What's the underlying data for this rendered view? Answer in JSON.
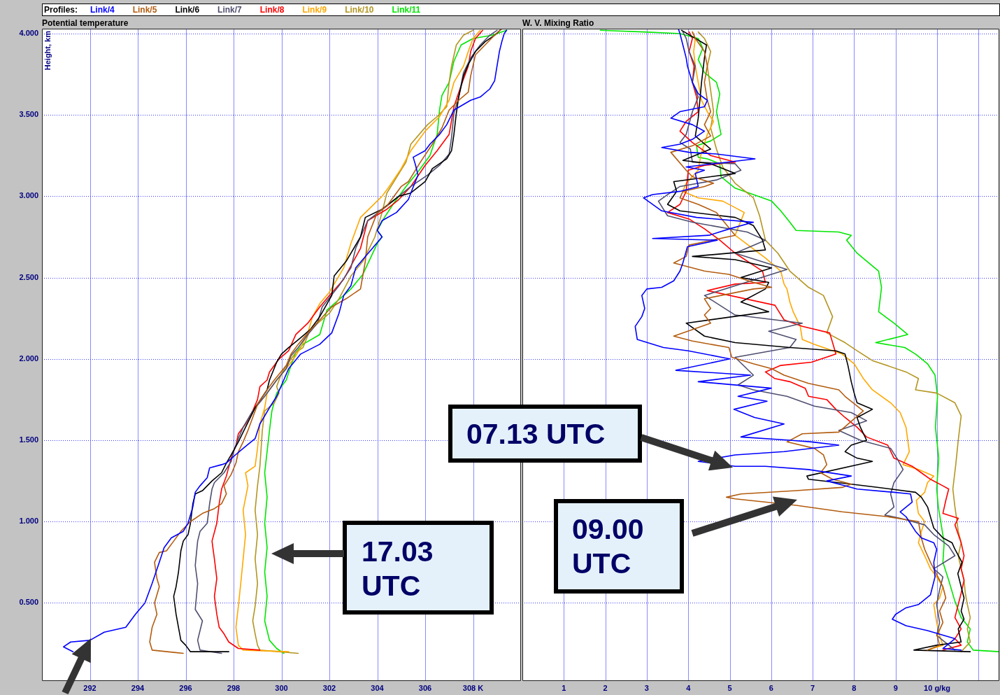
{
  "chart_data": [
    {
      "type": "line",
      "title": "Potential temperature",
      "ylabel": "Height, km",
      "legend": "top",
      "legend_title": "Profiles:",
      "grid": true,
      "xlim": [
        290,
        310
      ],
      "ylim": [
        0.02,
        4.03
      ],
      "xticks": [
        292,
        294,
        296,
        298,
        300,
        302,
        304,
        306,
        {
          "value": 308,
          "label": "308 K"
        }
      ],
      "yticks": [
        {
          "value": 0.5,
          "label": "0.500"
        },
        {
          "value": 1,
          "label": "1.000"
        },
        {
          "value": 1.5,
          "label": "1.500"
        },
        {
          "value": 2,
          "label": "2.000"
        },
        {
          "value": 2.5,
          "label": "2.500"
        },
        {
          "value": 3,
          "label": "3.000"
        },
        {
          "value": 3.5,
          "label": "3.500"
        },
        {
          "value": 4,
          "label": "4.000"
        }
      ],
      "annotations": [
        "17.03 UTC"
      ],
      "series": [
        {
          "name": "Link/4",
          "color": "#0000ff",
          "x": [
            291.3,
            290.9,
            291.2,
            292.0,
            292.6,
            293.5,
            293.9,
            294.3,
            294.6,
            294.9,
            295.1,
            295.4,
            295.9,
            296.1,
            296.3,
            296.4,
            296.6,
            296.9,
            297.0,
            297.5,
            297.7,
            298.0,
            298.4,
            298.9,
            299.1,
            299.5,
            299.8,
            300.3,
            300.8,
            301.6,
            302.1,
            302.4,
            302.6,
            302.9,
            303.1,
            304.2,
            304.0,
            304.2,
            304.8,
            305.3,
            305.4,
            305.7,
            305.6,
            305.5,
            306.0,
            306.2,
            306.6,
            306.9,
            307.2,
            307.9,
            308.3,
            308.7,
            308.9,
            309.0,
            309.1,
            309.2,
            309.3,
            309.4
          ],
          "values": [
            0.2,
            0.23,
            0.26,
            0.27,
            0.32,
            0.35,
            0.43,
            0.5,
            0.62,
            0.75,
            0.84,
            0.9,
            0.94,
            0.99,
            1.09,
            1.18,
            1.22,
            1.27,
            1.33,
            1.35,
            1.36,
            1.4,
            1.45,
            1.51,
            1.6,
            1.7,
            1.77,
            1.94,
            2.03,
            2.09,
            2.16,
            2.28,
            2.39,
            2.45,
            2.56,
            2.75,
            2.79,
            2.85,
            2.9,
            2.98,
            3.02,
            3.13,
            3.19,
            3.24,
            3.28,
            3.32,
            3.38,
            3.44,
            3.53,
            3.59,
            3.61,
            3.66,
            3.71,
            3.8,
            3.89,
            3.95,
            4.0,
            4.02
          ]
        },
        {
          "name": "Link/5",
          "color": "#b35c0f",
          "x": [
            295.9,
            294.6,
            294.5,
            294.6,
            294.8,
            294.7,
            294.9,
            294.8,
            294.7,
            294.9,
            295.2,
            295.5,
            295.8,
            296.2,
            296.7,
            297.2,
            297.5,
            297.7,
            297.6,
            297.9,
            298.1,
            298.2,
            298.4,
            298.6,
            298.8,
            299.0,
            299.3,
            299.7,
            300.2,
            300.4,
            300.7,
            301.1,
            301.6,
            302.1,
            302.7,
            303.3,
            303.5,
            303.6,
            304.0,
            304.4,
            305.0,
            305.3,
            305.8,
            306.3,
            306.7,
            307.0,
            307.4,
            307.8,
            307.9,
            308.1,
            308.5,
            308.9,
            309.2
          ],
          "values": [
            0.19,
            0.21,
            0.26,
            0.35,
            0.43,
            0.5,
            0.6,
            0.65,
            0.75,
            0.81,
            0.82,
            0.88,
            0.94,
            1.0,
            1.05,
            1.08,
            1.11,
            1.17,
            1.22,
            1.29,
            1.36,
            1.43,
            1.49,
            1.56,
            1.64,
            1.72,
            1.79,
            1.87,
            1.96,
            2.03,
            2.09,
            2.16,
            2.24,
            2.32,
            2.37,
            2.43,
            2.6,
            2.75,
            2.9,
            2.94,
            3.06,
            3.09,
            3.21,
            3.32,
            3.42,
            3.53,
            3.59,
            3.64,
            3.74,
            3.87,
            3.93,
            3.99,
            4.03
          ]
        },
        {
          "name": "Link/6",
          "color": "#000000",
          "x": [
            297.8,
            296.2,
            296.0,
            295.8,
            295.7,
            295.6,
            295.5,
            295.6,
            295.7,
            295.8,
            295.9,
            296.1,
            296.2,
            296.3,
            296.4,
            296.7,
            297.1,
            297.5,
            297.7,
            297.9,
            298.2,
            298.5,
            298.9,
            299.4,
            299.5,
            299.8,
            300.0,
            300.3,
            300.8,
            301.2,
            301.6,
            302.1,
            302.2,
            302.7,
            303.3,
            303.5,
            304.2,
            304.9,
            305.4,
            306.0,
            306.3,
            306.9,
            307.1,
            307.2,
            307.3,
            307.4,
            307.6,
            307.8,
            308.1,
            308.5,
            308.9,
            309.2
          ],
          "values": [
            0.2,
            0.2,
            0.24,
            0.27,
            0.35,
            0.43,
            0.54,
            0.6,
            0.69,
            0.82,
            0.88,
            0.92,
            0.99,
            1.11,
            1.17,
            1.19,
            1.25,
            1.3,
            1.36,
            1.41,
            1.49,
            1.58,
            1.7,
            1.81,
            1.87,
            1.98,
            2.03,
            2.07,
            2.13,
            2.18,
            2.26,
            2.39,
            2.51,
            2.6,
            2.75,
            2.87,
            2.92,
            3.0,
            3.02,
            3.09,
            3.17,
            3.23,
            3.28,
            3.38,
            3.51,
            3.61,
            3.74,
            3.81,
            3.89,
            3.95,
            3.99,
            4.03
          ]
        },
        {
          "name": "Link/7",
          "color": "#4f4f6f",
          "x": [
            297.5,
            296.6,
            296.5,
            296.7,
            296.4,
            296.5,
            296.4,
            296.5,
            296.6,
            296.9,
            297.0,
            297.1,
            297.2,
            297.6,
            297.9,
            298.0,
            298.2,
            298.4,
            298.8,
            299.3,
            299.8,
            300.2,
            300.4,
            300.7,
            301.1,
            301.5,
            301.7,
            302.4,
            302.9,
            303.1,
            303.6,
            304.4,
            304.9,
            305.4,
            306.1,
            306.6,
            307.0,
            307.1,
            307.2,
            307.4,
            307.6,
            307.9,
            308.3,
            308.7,
            309.0
          ],
          "values": [
            0.19,
            0.21,
            0.27,
            0.39,
            0.46,
            0.62,
            0.73,
            0.88,
            0.94,
            0.99,
            1.11,
            1.2,
            1.24,
            1.3,
            1.37,
            1.43,
            1.51,
            1.58,
            1.68,
            1.77,
            1.87,
            1.94,
            2.02,
            2.07,
            2.15,
            2.22,
            2.32,
            2.45,
            2.56,
            2.68,
            2.85,
            2.94,
            3.0,
            3.06,
            3.13,
            3.19,
            3.26,
            3.36,
            3.51,
            3.61,
            3.76,
            3.85,
            3.93,
            3.99,
            4.02
          ]
        },
        {
          "name": "Link/8",
          "color": "#ff0000",
          "x": [
            299.1,
            298.2,
            297.8,
            297.6,
            297.4,
            297.3,
            297.2,
            297.3,
            297.2,
            297.1,
            297.3,
            297.4,
            297.5,
            297.7,
            297.9,
            298.1,
            298.2,
            298.5,
            298.8,
            299.0,
            299.1,
            299.4,
            299.5,
            299.9,
            300.3,
            300.6,
            301.1,
            301.6,
            302.0,
            302.6,
            303.3,
            303.6,
            304.4,
            304.9,
            305.4,
            306.0,
            306.5,
            307.0,
            307.2,
            307.5,
            307.8,
            307.9,
            308.1,
            308.4
          ],
          "values": [
            0.21,
            0.22,
            0.26,
            0.31,
            0.35,
            0.43,
            0.54,
            0.65,
            0.77,
            0.88,
            0.99,
            1.11,
            1.2,
            1.28,
            1.39,
            1.47,
            1.54,
            1.6,
            1.68,
            1.75,
            1.83,
            1.87,
            1.92,
            2.0,
            2.05,
            2.15,
            2.22,
            2.32,
            2.39,
            2.49,
            2.68,
            2.85,
            2.92,
            2.98,
            3.06,
            3.19,
            3.28,
            3.38,
            3.55,
            3.68,
            3.8,
            3.89,
            3.97,
            4.02
          ]
        },
        {
          "name": "Link/9",
          "color": "#ffa800",
          "x": [
            300.3,
            298.4,
            298.2,
            298.1,
            298.2,
            298.3,
            298.4,
            298.5,
            298.4,
            298.6,
            298.5,
            298.9,
            299.0,
            299.1,
            299.3,
            299.4,
            299.8,
            300.2,
            300.6,
            300.8,
            301.1,
            301.3,
            301.6,
            302.0,
            302.6,
            302.9,
            303.3,
            304.2,
            304.5,
            305.0,
            305.4,
            306.0,
            306.6,
            307.0,
            307.2,
            307.6,
            307.8,
            308.0,
            308.3
          ],
          "values": [
            0.2,
            0.21,
            0.24,
            0.35,
            0.48,
            0.62,
            0.77,
            0.92,
            1.07,
            1.22,
            1.3,
            1.34,
            1.45,
            1.6,
            1.7,
            1.79,
            1.87,
            1.94,
            2.02,
            2.07,
            2.16,
            2.26,
            2.34,
            2.41,
            2.56,
            2.71,
            2.87,
            3.0,
            3.06,
            3.17,
            3.28,
            3.4,
            3.49,
            3.59,
            3.7,
            3.8,
            3.89,
            3.97,
            4.02
          ]
        },
        {
          "name": "Link/10",
          "color": "#b39621",
          "x": [
            300.7,
            299.1,
            299.0,
            298.9,
            298.8,
            298.9,
            299.0,
            298.9,
            299.0,
            298.9,
            299.0,
            299.1,
            299.2,
            299.3,
            299.7,
            299.9,
            299.8,
            300.0,
            300.3,
            300.6,
            300.9,
            301.2,
            302.0,
            302.4,
            302.9,
            303.4,
            303.9,
            304.2,
            304.4,
            305.2,
            305.4,
            306.1,
            306.5,
            306.9,
            307.0,
            307.1,
            307.3,
            307.6,
            308.0
          ],
          "values": [
            0.19,
            0.21,
            0.24,
            0.31,
            0.39,
            0.48,
            0.62,
            0.77,
            0.92,
            1.07,
            1.22,
            1.34,
            1.56,
            1.68,
            1.73,
            1.79,
            1.83,
            1.91,
            1.98,
            2.04,
            2.07,
            2.18,
            2.28,
            2.37,
            2.51,
            2.6,
            2.75,
            2.9,
            3.02,
            3.21,
            3.32,
            3.44,
            3.49,
            3.55,
            3.7,
            3.8,
            3.93,
            3.99,
            4.02
          ]
        },
        {
          "name": "Link/11",
          "color": "#00e600",
          "x": [
            300.1,
            299.8,
            299.5,
            299.3,
            299.4,
            299.3,
            299.4,
            299.3,
            299.4,
            299.3,
            299.5,
            299.6,
            299.8,
            300.2,
            300.4,
            300.6,
            300.9,
            301.6,
            301.9,
            302.9,
            303.4,
            304.0,
            304.2,
            304.0,
            304.3,
            304.7,
            305.2,
            305.7,
            306.2,
            306.5,
            306.6,
            306.7,
            307.0,
            307.2,
            307.5,
            308.0,
            308.8,
            309.4
          ],
          "values": [
            0.19,
            0.22,
            0.27,
            0.39,
            0.54,
            0.69,
            0.84,
            0.99,
            1.15,
            1.3,
            1.56,
            1.68,
            1.79,
            1.87,
            1.96,
            2.04,
            2.09,
            2.15,
            2.3,
            2.43,
            2.52,
            2.71,
            2.75,
            2.79,
            2.87,
            2.96,
            3.06,
            3.15,
            3.25,
            3.38,
            3.53,
            3.62,
            3.7,
            3.83,
            3.93,
            3.97,
            3.99,
            4.02
          ]
        }
      ]
    },
    {
      "type": "line",
      "title": "W. V. Mixing Ratio",
      "grid": true,
      "tick_labels": "x",
      "xlim": [
        0,
        11.5
      ],
      "ylim": [
        0.02,
        4.03
      ],
      "xticks": [
        1,
        2,
        3,
        4,
        5,
        6,
        7,
        8,
        9,
        {
          "value": 10,
          "label": "10 g/kg"
        },
        {
          "value": 11,
          "label": null
        }
      ],
      "yticks": [
        0.5,
        1,
        1.5,
        2,
        2.5,
        3,
        3.5,
        4
      ],
      "annotations": [
        "07.13 UTC",
        "09.00 UTC"
      ],
      "series": [
        {
          "color": "#0000ff",
          "x": [
            10.58,
            10.14,
            10.43,
            9.77,
            9.25,
            8.92,
            9.0,
            9.25,
            9.55,
            9.84,
            9.95,
            9.92,
            9.99,
            9.92,
            9.62,
            9.48,
            9.33,
            9.25,
            9.11,
            9.4,
            9.36,
            8.96,
            8.07,
            7.78,
            7.34,
            7.93,
            6.9,
            5.86,
            5.13,
            4.24,
            5.13,
            6.31,
            7.63,
            6.97,
            6.45,
            5.27,
            6.31,
            5.6,
            5.1,
            5.9,
            5.2,
            6.0,
            4.24,
            5.5,
            3.7,
            5.0,
            4.0,
            3.4,
            2.77,
            2.72,
            2.88,
            2.95,
            2.88,
            3.0,
            3.36,
            3.65,
            3.8,
            3.87,
            3.98,
            4.7,
            3.14,
            4.5,
            5.0,
            5.57,
            4.2,
            3.36,
            2.92,
            3.14,
            3.8,
            4.24,
            4.17,
            4.39,
            3.95,
            5.61,
            4.68,
            4.02,
            3.36,
            3.8,
            4.1,
            4.39,
            4.1,
            3.58,
            3.8,
            4.39,
            4.46,
            4.24,
            4.1,
            3.98,
            3.95,
            3.87,
            3.8,
            3.76
          ],
          "values": [
            0.21,
            0.22,
            0.28,
            0.33,
            0.36,
            0.4,
            0.43,
            0.47,
            0.49,
            0.55,
            0.66,
            0.75,
            0.83,
            0.87,
            0.9,
            0.94,
            1.0,
            1.03,
            1.06,
            1.12,
            1.17,
            1.18,
            1.2,
            1.22,
            1.25,
            1.28,
            1.32,
            1.34,
            1.34,
            1.37,
            1.41,
            1.43,
            1.47,
            1.49,
            1.5,
            1.52,
            1.6,
            1.64,
            1.69,
            1.74,
            1.77,
            1.82,
            1.86,
            1.9,
            1.93,
            2.0,
            2.05,
            2.07,
            2.12,
            2.2,
            2.26,
            2.31,
            2.39,
            2.43,
            2.44,
            2.48,
            2.54,
            2.59,
            2.69,
            2.73,
            2.74,
            2.76,
            2.8,
            2.84,
            2.87,
            2.91,
            2.99,
            3.01,
            3.03,
            3.06,
            3.14,
            3.16,
            3.18,
            3.23,
            3.26,
            3.27,
            3.3,
            3.32,
            3.35,
            3.4,
            3.44,
            3.48,
            3.52,
            3.55,
            3.59,
            3.63,
            3.7,
            3.8,
            3.85,
            3.93,
            4.0,
            4.03
          ]
        },
        {
          "color": "#b35c0f",
          "x": [
            9.77,
            10.06,
            10.0,
            10.14,
            10.06,
            10.21,
            10.14,
            9.84,
            9.7,
            9.62,
            9.55,
            8.81,
            7.71,
            6.6,
            5.13,
            4.92,
            5.27,
            6.6,
            7.71,
            7.93,
            7.48,
            7.19,
            7.34,
            7.26,
            7.04,
            6.38,
            6.75,
            7.63,
            8.22,
            7.78,
            7.63,
            6.9,
            6.31,
            6.01,
            5.57,
            5.05,
            4.98,
            4.1,
            3.65,
            4.54,
            4.39,
            4.54,
            4.39,
            5.57,
            6.01,
            5.57,
            4.98,
            4.39,
            3.65,
            3.95,
            4.02,
            5.13,
            4.68,
            4.24,
            3.8,
            3.87,
            4.39,
            4.61,
            4.1,
            3.95,
            3.58,
            4.1,
            4.54,
            4.39,
            4.54,
            4.46,
            4.39,
            4.46,
            4.39,
            4.17,
            4.1
          ],
          "values": [
            0.21,
            0.24,
            0.3,
            0.38,
            0.45,
            0.53,
            0.6,
            0.75,
            0.83,
            0.9,
            1.0,
            1.03,
            1.06,
            1.1,
            1.14,
            1.15,
            1.17,
            1.19,
            1.21,
            1.23,
            1.26,
            1.3,
            1.35,
            1.41,
            1.45,
            1.49,
            1.54,
            1.55,
            1.68,
            1.77,
            1.81,
            1.85,
            1.9,
            1.94,
            1.97,
            2.01,
            2.07,
            2.11,
            2.14,
            2.22,
            2.27,
            2.31,
            2.37,
            2.43,
            2.44,
            2.47,
            2.52,
            2.54,
            2.59,
            2.63,
            2.7,
            2.76,
            2.9,
            2.95,
            2.99,
            3.03,
            3.06,
            3.08,
            3.12,
            3.16,
            3.27,
            3.31,
            3.37,
            3.44,
            3.52,
            3.59,
            3.7,
            3.8,
            3.89,
            3.97,
            4.01
          ]
        },
        {
          "color": "#000000",
          "x": [
            10.8,
            9.44,
            9.99,
            10.58,
            10.51,
            10.65,
            10.58,
            10.65,
            10.58,
            10.5,
            10.6,
            10.43,
            10.36,
            10.14,
            9.92,
            9.85,
            9.77,
            9.62,
            9.48,
            8.59,
            7.93,
            6.9,
            6.86,
            8.44,
            8.07,
            7.78,
            7.93,
            8.3,
            8.15,
            8.07,
            8.44,
            8.07,
            8.0,
            7.93,
            7.85,
            7.78,
            7.56,
            6.45,
            5.13,
            4.39,
            3.95,
            5.94,
            5.27,
            5.86,
            5.94,
            5.27,
            6.01,
            5.13,
            4.1,
            5.86,
            5.79,
            5.57,
            5.13,
            3.8,
            3.5,
            3.72,
            3.65,
            5.13,
            4.54,
            3.87,
            4.54,
            4.17,
            4.24,
            4.28,
            4.32,
            4.39,
            4.44,
            3.84
          ],
          "values": [
            0.2,
            0.21,
            0.24,
            0.26,
            0.34,
            0.4,
            0.45,
            0.53,
            0.6,
            0.68,
            0.75,
            0.83,
            0.87,
            0.9,
            0.96,
            1.02,
            1.09,
            1.15,
            1.18,
            1.21,
            1.23,
            1.26,
            1.28,
            1.37,
            1.39,
            1.43,
            1.47,
            1.5,
            1.58,
            1.64,
            1.69,
            1.73,
            1.79,
            1.86,
            1.96,
            2.03,
            2.05,
            2.07,
            2.1,
            2.14,
            2.22,
            2.29,
            2.35,
            2.43,
            2.47,
            2.5,
            2.56,
            2.61,
            2.63,
            2.67,
            2.73,
            2.82,
            2.87,
            2.91,
            2.95,
            3.03,
            3.09,
            3.14,
            3.2,
            3.22,
            3.29,
            3.37,
            3.48,
            3.59,
            3.7,
            3.85,
            3.93,
            4.02
          ]
        },
        {
          "color": "#4f4f6f",
          "x": [
            10.43,
            9.99,
            10.06,
            9.99,
            10.06,
            10.14,
            9.92,
            10.43,
            10.28,
            9.92,
            9.7,
            9.11,
            8.74,
            8.96,
            8.88,
            8.96,
            9.18,
            9.03,
            8.88,
            8.15,
            7.63,
            8.3,
            7.93,
            7.04,
            6.38,
            5.57,
            5.2,
            5.57,
            5.13,
            6.45,
            6.6,
            5.94,
            6.75,
            5.13,
            4.39,
            6.38,
            5.13,
            5.86,
            5.42,
            4.1,
            3.5,
            3.28,
            3.5,
            3.8,
            4.68,
            5.27,
            5.13,
            4.1,
            4.05,
            3.8,
            3.95,
            4.1,
            4.24,
            4.1,
            4.17,
            4.02,
            3.95,
            3.87
          ],
          "values": [
            0.21,
            0.3,
            0.38,
            0.49,
            0.58,
            0.66,
            0.71,
            0.79,
            0.85,
            0.92,
            0.98,
            1.02,
            1.04,
            1.09,
            1.17,
            1.24,
            1.32,
            1.39,
            1.45,
            1.5,
            1.56,
            1.62,
            1.67,
            1.71,
            1.77,
            1.81,
            1.84,
            1.9,
            2.01,
            2.07,
            2.12,
            2.17,
            2.22,
            2.27,
            2.39,
            2.55,
            2.65,
            2.73,
            2.78,
            2.84,
            2.88,
            2.97,
            3.01,
            3.06,
            3.1,
            3.16,
            3.2,
            3.21,
            3.29,
            3.33,
            3.38,
            3.52,
            3.61,
            3.7,
            3.8,
            3.89,
            3.97,
            4.01
          ]
        },
        {
          "color": "#ff0000",
          "x": [
            10.14,
            10.58,
            10.43,
            10.58,
            10.43,
            10.51,
            10.58,
            10.65,
            10.58,
            10.65,
            10.58,
            10.43,
            10.51,
            10.14,
            10.21,
            10.28,
            10.14,
            9.84,
            9.62,
            9.4,
            8.96,
            8.81,
            8.3,
            8.07,
            7.78,
            7.56,
            7.34,
            6.9,
            6.82,
            6.45,
            6.08,
            5.86,
            6.23,
            6.97,
            7.56,
            7.48,
            7.41,
            6.75,
            6.31,
            6.09,
            4.46,
            5.13,
            5.86,
            5.79,
            5.13,
            4.76,
            4.39,
            4.02,
            3.5,
            3.8,
            3.95,
            4.0,
            4.39,
            5.13,
            4.54,
            4.1,
            3.8,
            3.95,
            4.24,
            4.2,
            4.1,
            4.14,
            4.02,
            4.1,
            4.02
          ],
          "values": [
            0.21,
            0.24,
            0.28,
            0.34,
            0.41,
            0.49,
            0.56,
            0.64,
            0.71,
            0.79,
            0.87,
            0.98,
            1.02,
            1.05,
            1.13,
            1.2,
            1.22,
            1.26,
            1.3,
            1.34,
            1.39,
            1.47,
            1.52,
            1.58,
            1.64,
            1.69,
            1.75,
            1.77,
            1.82,
            1.86,
            1.88,
            1.92,
            1.96,
            1.98,
            2.03,
            2.1,
            2.16,
            2.2,
            2.24,
            2.33,
            2.42,
            2.46,
            2.47,
            2.54,
            2.65,
            2.73,
            2.8,
            2.86,
            2.9,
            2.95,
            3.03,
            3.16,
            3.19,
            3.21,
            3.25,
            3.33,
            3.4,
            3.46,
            3.52,
            3.61,
            3.7,
            3.8,
            3.89,
            3.97,
            4.01
          ]
        },
        {
          "color": "#ffa800",
          "x": [
            9.77,
            10.14,
            10.06,
            9.99,
            9.92,
            10.06,
            10.14,
            9.99,
            9.84,
            9.7,
            9.55,
            9.62,
            9.7,
            9.55,
            9.5,
            9.7,
            9.77,
            9.92,
            9.55,
            9.18,
            9.33,
            9.25,
            9.11,
            8.88,
            8.44,
            8.22,
            8.0,
            7.71,
            7.04,
            6.75,
            6.7,
            6.53,
            6.45,
            6.38,
            6.31,
            6.23,
            5.86,
            5.13,
            5.35,
            5.13,
            4.83,
            4.24,
            3.87,
            3.95,
            4.24,
            4.3,
            4.46,
            4.61,
            4.46,
            4.32,
            4.24,
            4.17,
            4.13,
            4.17,
            4.1
          ],
          "values": [
            0.21,
            0.24,
            0.3,
            0.38,
            0.49,
            0.53,
            0.6,
            0.66,
            0.71,
            0.79,
            0.87,
            0.94,
            1.0,
            1.05,
            1.13,
            1.18,
            1.24,
            1.28,
            1.32,
            1.35,
            1.43,
            1.58,
            1.67,
            1.73,
            1.81,
            1.88,
            1.97,
            2.03,
            2.09,
            2.12,
            2.2,
            2.29,
            2.35,
            2.43,
            2.46,
            2.54,
            2.62,
            2.76,
            2.9,
            2.93,
            2.97,
            2.99,
            3.03,
            3.08,
            3.16,
            3.25,
            3.38,
            3.46,
            3.52,
            3.59,
            3.7,
            3.8,
            3.89,
            3.97,
            4.01
          ]
        },
        {
          "color": "#b39621",
          "x": [
            10.58,
            10.8,
            10.73,
            10.8,
            10.73,
            10.68,
            10.65,
            10.58,
            10.51,
            10.58,
            10.51,
            10.47,
            10.43,
            10.38,
            10.45,
            10.51,
            10.58,
            10.43,
            9.99,
            9.48,
            9.55,
            9.25,
            8.44,
            8.07,
            7.78,
            7.34,
            7.48,
            7.26,
            6.9,
            6.45,
            6.16,
            5.86,
            5.72,
            5.57,
            5.13,
            4.83,
            4.68,
            4.54,
            4.61,
            4.46,
            4.54,
            4.39,
            4.24
          ],
          "values": [
            0.2,
            0.26,
            0.34,
            0.41,
            0.49,
            0.56,
            0.64,
            0.71,
            0.79,
            0.87,
            0.94,
            1.02,
            1.09,
            1.2,
            1.35,
            1.5,
            1.65,
            1.73,
            1.79,
            1.81,
            1.88,
            1.92,
            1.99,
            2.05,
            2.1,
            2.16,
            2.26,
            2.39,
            2.44,
            2.54,
            2.65,
            2.73,
            2.88,
            2.99,
            3.08,
            3.18,
            3.29,
            3.42,
            3.52,
            3.8,
            3.89,
            3.97,
            4.01
          ]
        },
        {
          "color": "#00e600",
          "x": [
            11.5,
            10.87,
            10.73,
            10.8,
            10.58,
            10.43,
            10.28,
            10.14,
            10.17,
            10.1,
            10.03,
            9.99,
            10.04,
            9.96,
            10.01,
            9.95,
            9.77,
            9.48,
            9.22,
            8.52,
            9.29,
            8.96,
            8.59,
            8.66,
            8.59,
            8.07,
            7.82,
            7.93,
            7.63,
            6.6,
            6.45,
            6.23,
            6.01,
            5.57,
            5.13,
            4.79,
            4.76,
            4.46,
            4.24,
            4.2,
            4.54,
            4.79,
            4.68,
            4.76,
            4.68,
            4.39,
            4.24,
            4.35,
            4.24,
            3.8,
            2.92,
            1.88
          ],
          "values": [
            0.2,
            0.21,
            0.26,
            0.34,
            0.41,
            0.51,
            0.64,
            0.75,
            0.87,
            0.98,
            1.09,
            1.2,
            1.39,
            1.58,
            1.77,
            1.9,
            1.97,
            2.03,
            2.07,
            2.1,
            2.15,
            2.22,
            2.29,
            2.44,
            2.54,
            2.65,
            2.73,
            2.76,
            2.78,
            2.79,
            2.84,
            2.91,
            2.97,
            3.01,
            3.05,
            3.12,
            3.2,
            3.23,
            3.24,
            3.31,
            3.34,
            3.38,
            3.52,
            3.63,
            3.7,
            3.76,
            3.84,
            3.91,
            3.97,
            4.0,
            4.01,
            4.02
          ]
        }
      ]
    }
  ]
}
